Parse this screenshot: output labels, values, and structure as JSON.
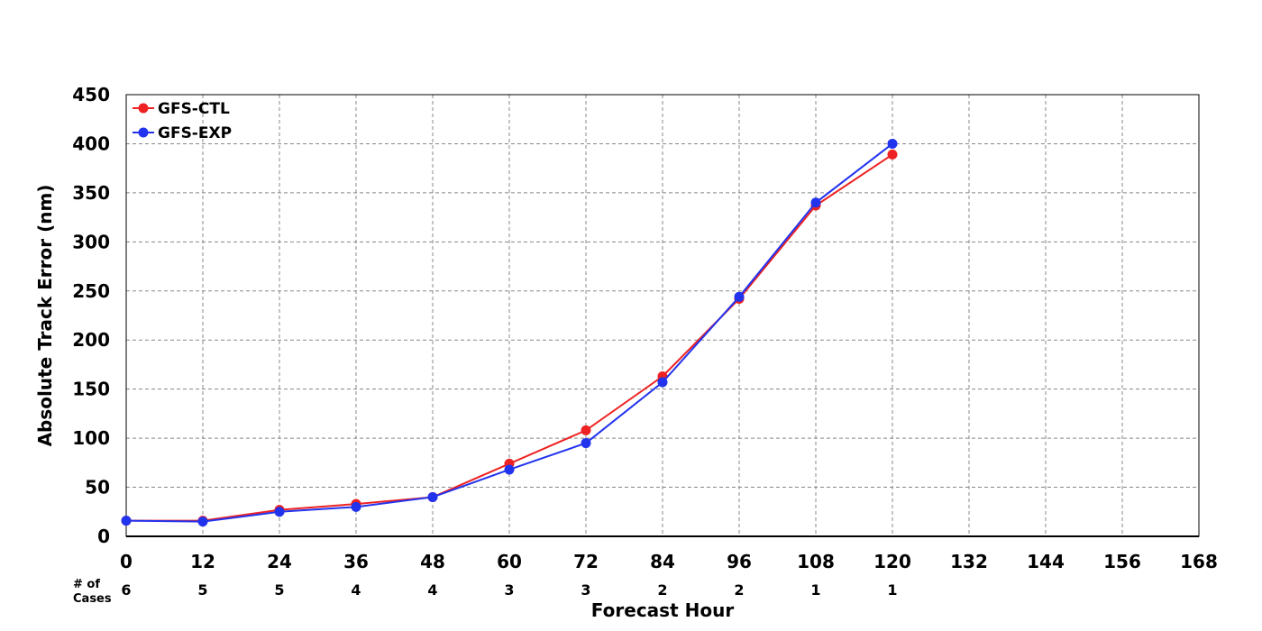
{
  "chart_data": {
    "type": "line",
    "title": "",
    "xlabel": "Forecast Hour",
    "ylabel": "Absolute Track Error (nm)",
    "x": [
      0,
      12,
      24,
      36,
      48,
      60,
      72,
      84,
      96,
      108,
      120
    ],
    "xlim": [
      0,
      168
    ],
    "ylim": [
      0,
      450
    ],
    "x_ticks": [
      "0",
      "12",
      "24",
      "36",
      "48",
      "60",
      "72",
      "84",
      "96",
      "108",
      "120",
      "132",
      "144",
      "156",
      "168"
    ],
    "y_ticks": [
      "0",
      "50",
      "100",
      "150",
      "200",
      "250",
      "300",
      "350",
      "400",
      "450"
    ],
    "grid": true,
    "legend_position": "top-left",
    "series": [
      {
        "name": "GFS-CTL",
        "color": "#ee2222",
        "values": [
          16,
          16,
          27,
          33,
          40,
          74,
          108,
          163,
          242,
          337,
          389
        ]
      },
      {
        "name": "GFS-EXP",
        "color": "#2233ee",
        "values": [
          16,
          15,
          25,
          30,
          40,
          68,
          95,
          157,
          244,
          340,
          400
        ]
      }
    ],
    "cases_label": [
      "# of",
      "Cases"
    ],
    "cases": [
      "6",
      "5",
      "5",
      "4",
      "4",
      "3",
      "3",
      "2",
      "2",
      "1",
      "1"
    ]
  }
}
